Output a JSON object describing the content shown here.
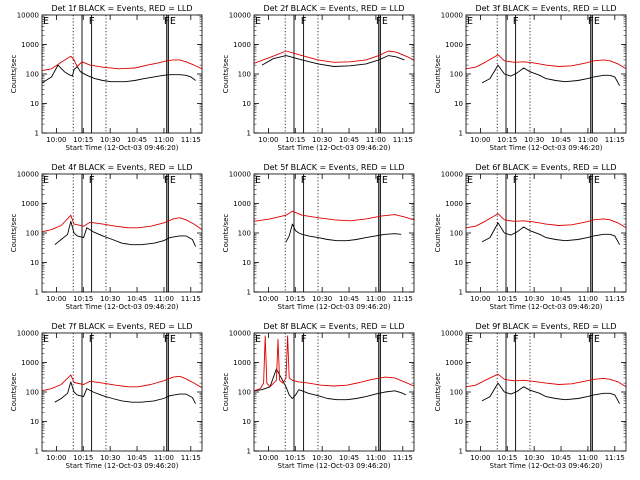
{
  "chart_data": [
    {
      "type": "line",
      "title": "Det 1f BLACK = Events, RED = LLD",
      "detector": 1,
      "xlabel": "Start Time (12-Oct-03 09:46:20)",
      "ylabel": "Counts/sec",
      "xticks": [
        "10:00",
        "10:15",
        "10:30",
        "10:45",
        "11:00",
        "11:15"
      ],
      "yticks": [
        "1",
        "10",
        "100",
        "1000",
        "10000"
      ],
      "ylim": [
        1,
        10000
      ],
      "yscale": "log",
      "markers": [
        "E",
        "F",
        "FE"
      ],
      "series": [
        {
          "color": "#000000",
          "x": [
            0,
            0.06,
            0.1,
            0.14,
            0.17,
            0.19,
            0.2,
            0.22,
            0.24,
            0.28,
            0.33,
            0.38,
            0.43,
            0.48,
            0.52,
            0.58,
            0.64,
            0.7,
            0.76,
            0.8,
            0.86,
            0.9,
            0.93,
            0.96
          ],
          "y": [
            50,
            80,
            200,
            120,
            95,
            85,
            140,
            180,
            120,
            90,
            70,
            60,
            55,
            55,
            55,
            60,
            70,
            80,
            90,
            95,
            95,
            90,
            80,
            60
          ]
        },
        {
          "color": "#dd0000",
          "x": [
            0,
            0.06,
            0.12,
            0.18,
            0.2,
            0.22,
            0.25,
            0.3,
            0.38,
            0.48,
            0.58,
            0.66,
            0.73,
            0.78,
            0.82,
            0.86,
            0.9,
            0.95,
            1
          ],
          "y": [
            130,
            150,
            250,
            400,
            300,
            180,
            260,
            200,
            170,
            150,
            160,
            200,
            240,
            280,
            300,
            300,
            260,
            200,
            150
          ]
        }
      ]
    },
    {
      "type": "line",
      "title": "Det 2f BLACK = Events, RED = LLD",
      "detector": 2,
      "xlabel": "Start Time (12-Oct-03 09:46:20)",
      "ylabel": "Counts/sec",
      "xticks": [
        "10:00",
        "10:15",
        "10:30",
        "10:45",
        "11:00",
        "11:15"
      ],
      "yticks": [
        "1",
        "10",
        "100",
        "1000",
        "10000"
      ],
      "ylim": [
        1,
        10000
      ],
      "yscale": "log",
      "markers": [
        "E",
        "F",
        "FE"
      ],
      "series": [
        {
          "color": "#000000",
          "x": [
            0.05,
            0.12,
            0.2,
            0.3,
            0.4,
            0.5,
            0.6,
            0.7,
            0.78,
            0.84,
            0.89,
            0.94
          ],
          "y": [
            200,
            330,
            420,
            300,
            220,
            180,
            190,
            220,
            300,
            420,
            380,
            300
          ]
        },
        {
          "color": "#dd0000",
          "x": [
            0,
            0.12,
            0.2,
            0.3,
            0.4,
            0.5,
            0.6,
            0.7,
            0.78,
            0.84,
            0.89,
            0.95,
            1
          ],
          "y": [
            230,
            400,
            600,
            420,
            300,
            250,
            260,
            300,
            420,
            600,
            550,
            400,
            300
          ]
        }
      ]
    },
    {
      "type": "line",
      "title": "Det 3f BLACK = Events, RED = LLD",
      "detector": 3,
      "xlabel": "Start Time (12-Oct-03 09:46:20)",
      "ylabel": "Counts/sec",
      "xticks": [
        "10:00",
        "10:15",
        "10:30",
        "10:45",
        "11:00",
        "11:15"
      ],
      "yticks": [
        "1",
        "10",
        "100",
        "1000",
        "10000"
      ],
      "ylim": [
        1,
        10000
      ],
      "yscale": "log",
      "markers": [
        "E",
        "F",
        "FE"
      ],
      "series": [
        {
          "color": "#000000",
          "x": [
            0.1,
            0.15,
            0.2,
            0.24,
            0.28,
            0.32,
            0.36,
            0.4,
            0.46,
            0.5,
            0.56,
            0.62,
            0.7,
            0.76,
            0.8,
            0.86,
            0.9,
            0.93,
            0.96
          ],
          "y": [
            50,
            70,
            200,
            100,
            85,
            110,
            160,
            120,
            90,
            70,
            60,
            55,
            60,
            70,
            80,
            90,
            90,
            80,
            40
          ]
        },
        {
          "color": "#dd0000",
          "x": [
            0,
            0.06,
            0.12,
            0.2,
            0.24,
            0.3,
            0.36,
            0.42,
            0.5,
            0.58,
            0.66,
            0.74,
            0.8,
            0.86,
            0.9,
            0.95,
            1
          ],
          "y": [
            150,
            170,
            250,
            450,
            280,
            250,
            260,
            240,
            200,
            180,
            190,
            230,
            280,
            300,
            280,
            220,
            150
          ]
        }
      ]
    },
    {
      "type": "line",
      "title": "Det 4f BLACK = Events, RED = LLD",
      "detector": 4,
      "xlabel": "Start Time (12-Oct-03 09:46:20)",
      "ylabel": "Counts/sec",
      "xticks": [
        "10:00",
        "10:15",
        "10:30",
        "10:45",
        "11:00",
        "11:15"
      ],
      "yticks": [
        "1",
        "10",
        "100",
        "1000",
        "10000"
      ],
      "ylim": [
        1,
        10000
      ],
      "yscale": "log",
      "markers": [
        "E",
        "F",
        "FE"
      ],
      "series": [
        {
          "color": "#000000",
          "x": [
            0.08,
            0.12,
            0.16,
            0.18,
            0.2,
            0.22,
            0.26,
            0.28,
            0.32,
            0.38,
            0.44,
            0.5,
            0.56,
            0.62,
            0.7,
            0.76,
            0.8,
            0.86,
            0.9,
            0.94,
            0.96
          ],
          "y": [
            40,
            60,
            90,
            250,
            100,
            80,
            70,
            150,
            110,
            80,
            60,
            45,
            40,
            40,
            45,
            55,
            70,
            80,
            80,
            60,
            35
          ]
        },
        {
          "color": "#dd0000",
          "x": [
            0,
            0.06,
            0.12,
            0.18,
            0.2,
            0.26,
            0.3,
            0.38,
            0.46,
            0.54,
            0.6,
            0.68,
            0.76,
            0.82,
            0.86,
            0.9,
            0.95,
            1
          ],
          "y": [
            110,
            130,
            180,
            400,
            200,
            170,
            230,
            200,
            170,
            150,
            150,
            170,
            220,
            300,
            330,
            280,
            200,
            130
          ]
        }
      ]
    },
    {
      "type": "line",
      "title": "Det 5f BLACK = Events, RED = LLD",
      "detector": 5,
      "xlabel": "Start Time (12-Oct-03 09:46:20)",
      "ylabel": "Counts/sec",
      "xticks": [
        "10:00",
        "10:15",
        "10:30",
        "10:45",
        "11:00",
        "11:15"
      ],
      "yticks": [
        "1",
        "10",
        "100",
        "1000",
        "10000"
      ],
      "ylim": [
        1,
        10000
      ],
      "yscale": "log",
      "markers": [
        "E",
        "F",
        "FE"
      ],
      "series": [
        {
          "color": "#000000",
          "x": [
            0.2,
            0.22,
            0.24,
            0.26,
            0.28,
            0.3,
            0.34,
            0.4,
            0.46,
            0.52,
            0.58,
            0.64,
            0.7,
            0.76,
            0.82,
            0.88,
            0.92
          ],
          "y": [
            50,
            80,
            200,
            120,
            100,
            90,
            80,
            70,
            60,
            55,
            55,
            60,
            70,
            80,
            90,
            95,
            90
          ]
        },
        {
          "color": "#dd0000",
          "x": [
            0,
            0.1,
            0.2,
            0.24,
            0.3,
            0.4,
            0.5,
            0.6,
            0.7,
            0.8,
            0.88,
            0.94,
            1
          ],
          "y": [
            250,
            300,
            400,
            550,
            400,
            330,
            280,
            260,
            300,
            380,
            420,
            350,
            280
          ]
        }
      ]
    },
    {
      "type": "line",
      "title": "Det 6f BLACK = Events, RED = LLD",
      "detector": 6,
      "xlabel": "Start Time (12-Oct-03 09:46:20)",
      "ylabel": "Counts/sec",
      "xticks": [
        "10:00",
        "10:15",
        "10:30",
        "10:45",
        "11:00",
        "11:15"
      ],
      "yticks": [
        "1",
        "10",
        "100",
        "1000",
        "10000"
      ],
      "ylim": [
        1,
        10000
      ],
      "yscale": "log",
      "markers": [
        "E",
        "F",
        "FE"
      ],
      "series": [
        {
          "color": "#000000",
          "x": [
            0.1,
            0.15,
            0.2,
            0.24,
            0.28,
            0.32,
            0.36,
            0.4,
            0.46,
            0.5,
            0.56,
            0.62,
            0.7,
            0.76,
            0.8,
            0.86,
            0.9,
            0.93,
            0.96
          ],
          "y": [
            50,
            70,
            220,
            100,
            85,
            110,
            160,
            120,
            90,
            70,
            60,
            55,
            60,
            70,
            80,
            90,
            90,
            80,
            40
          ]
        },
        {
          "color": "#dd0000",
          "x": [
            0,
            0.06,
            0.12,
            0.2,
            0.24,
            0.3,
            0.36,
            0.42,
            0.5,
            0.58,
            0.66,
            0.74,
            0.8,
            0.86,
            0.9,
            0.95,
            1
          ],
          "y": [
            150,
            170,
            250,
            450,
            280,
            250,
            260,
            240,
            200,
            180,
            190,
            230,
            280,
            300,
            280,
            220,
            150
          ]
        }
      ]
    },
    {
      "type": "line",
      "title": "Det 7f BLACK = Events, RED = LLD",
      "detector": 7,
      "xlabel": "Start Time (12-Oct-03 09:46:20)",
      "ylabel": "Counts/sec",
      "xticks": [
        "10:00",
        "10:15",
        "10:30",
        "10:45",
        "11:00",
        "11:15"
      ],
      "yticks": [
        "1",
        "10",
        "100",
        "1000",
        "10000"
      ],
      "ylim": [
        1,
        10000
      ],
      "yscale": "log",
      "markers": [
        "E",
        "F",
        "FE"
      ],
      "series": [
        {
          "color": "#000000",
          "x": [
            0.08,
            0.12,
            0.16,
            0.18,
            0.2,
            0.22,
            0.26,
            0.28,
            0.32,
            0.38,
            0.44,
            0.5,
            0.56,
            0.62,
            0.7,
            0.76,
            0.8,
            0.86,
            0.9,
            0.94,
            0.96
          ],
          "y": [
            45,
            60,
            90,
            220,
            100,
            80,
            70,
            130,
            100,
            75,
            60,
            50,
            45,
            45,
            50,
            60,
            75,
            85,
            85,
            65,
            40
          ]
        },
        {
          "color": "#dd0000",
          "x": [
            0,
            0.06,
            0.12,
            0.18,
            0.2,
            0.26,
            0.3,
            0.38,
            0.46,
            0.54,
            0.6,
            0.68,
            0.76,
            0.82,
            0.86,
            0.9,
            0.95,
            1
          ],
          "y": [
            110,
            130,
            180,
            380,
            210,
            180,
            230,
            200,
            170,
            150,
            150,
            180,
            240,
            320,
            340,
            280,
            200,
            140
          ]
        }
      ]
    },
    {
      "type": "line",
      "title": "Det 8f BLACK = Events, RED = LLD",
      "detector": 8,
      "xlabel": "Start Time (12-Oct-03 09:46:20)",
      "ylabel": "Counts/sec",
      "xticks": [
        "10:00",
        "10:15",
        "10:30",
        "10:45",
        "11:00",
        "11:15"
      ],
      "yticks": [
        "1",
        "10",
        "100",
        "1000",
        "10000"
      ],
      "ylim": [
        1,
        10000
      ],
      "yscale": "log",
      "markers": [
        "E",
        "F",
        "FE"
      ],
      "series": [
        {
          "color": "#000000",
          "x": [
            0,
            0.05,
            0.1,
            0.14,
            0.17,
            0.2,
            0.22,
            0.24,
            0.26,
            0.28,
            0.3,
            0.34,
            0.4,
            0.46,
            0.52,
            0.58,
            0.64,
            0.7,
            0.76,
            0.82,
            0.88,
            0.92,
            0.95
          ],
          "y": [
            110,
            120,
            150,
            600,
            300,
            150,
            80,
            60,
            80,
            120,
            110,
            90,
            75,
            60,
            55,
            55,
            60,
            70,
            85,
            100,
            110,
            95,
            80
          ]
        },
        {
          "color": "#dd0000",
          "x": [
            0,
            0.04,
            0.06,
            0.07,
            0.08,
            0.1,
            0.14,
            0.15,
            0.16,
            0.18,
            0.2,
            0.21,
            0.22,
            0.24,
            0.28,
            0.34,
            0.42,
            0.5,
            0.58,
            0.66,
            0.74,
            0.82,
            0.88,
            0.94,
            1
          ],
          "y": [
            110,
            130,
            200,
            8000,
            200,
            150,
            250,
            6000,
            250,
            200,
            300,
            8000,
            300,
            250,
            220,
            200,
            170,
            160,
            170,
            210,
            270,
            320,
            300,
            220,
            160
          ]
        }
      ]
    },
    {
      "type": "line",
      "title": "Det 9f BLACK = Events, RED = LLD",
      "detector": 9,
      "xlabel": "Start Time (12-Oct-03 09:46:20)",
      "ylabel": "Counts/sec",
      "xticks": [
        "10:00",
        "10:15",
        "10:30",
        "10:45",
        "11:00",
        "11:15"
      ],
      "yticks": [
        "1",
        "10",
        "100",
        "1000",
        "10000"
      ],
      "ylim": [
        1,
        10000
      ],
      "yscale": "log",
      "markers": [
        "E",
        "F",
        "FE"
      ],
      "series": [
        {
          "color": "#000000",
          "x": [
            0.1,
            0.15,
            0.2,
            0.24,
            0.28,
            0.32,
            0.36,
            0.4,
            0.46,
            0.5,
            0.56,
            0.62,
            0.7,
            0.76,
            0.8,
            0.86,
            0.9,
            0.93,
            0.96
          ],
          "y": [
            50,
            70,
            200,
            100,
            85,
            105,
            150,
            115,
            90,
            70,
            60,
            55,
            60,
            70,
            80,
            90,
            90,
            80,
            40
          ]
        },
        {
          "color": "#dd0000",
          "x": [
            0,
            0.06,
            0.12,
            0.2,
            0.24,
            0.3,
            0.36,
            0.42,
            0.5,
            0.58,
            0.66,
            0.74,
            0.8,
            0.86,
            0.9,
            0.95,
            1
          ],
          "y": [
            150,
            170,
            250,
            400,
            270,
            240,
            250,
            230,
            200,
            180,
            190,
            230,
            270,
            290,
            270,
            220,
            150
          ]
        }
      ]
    }
  ]
}
